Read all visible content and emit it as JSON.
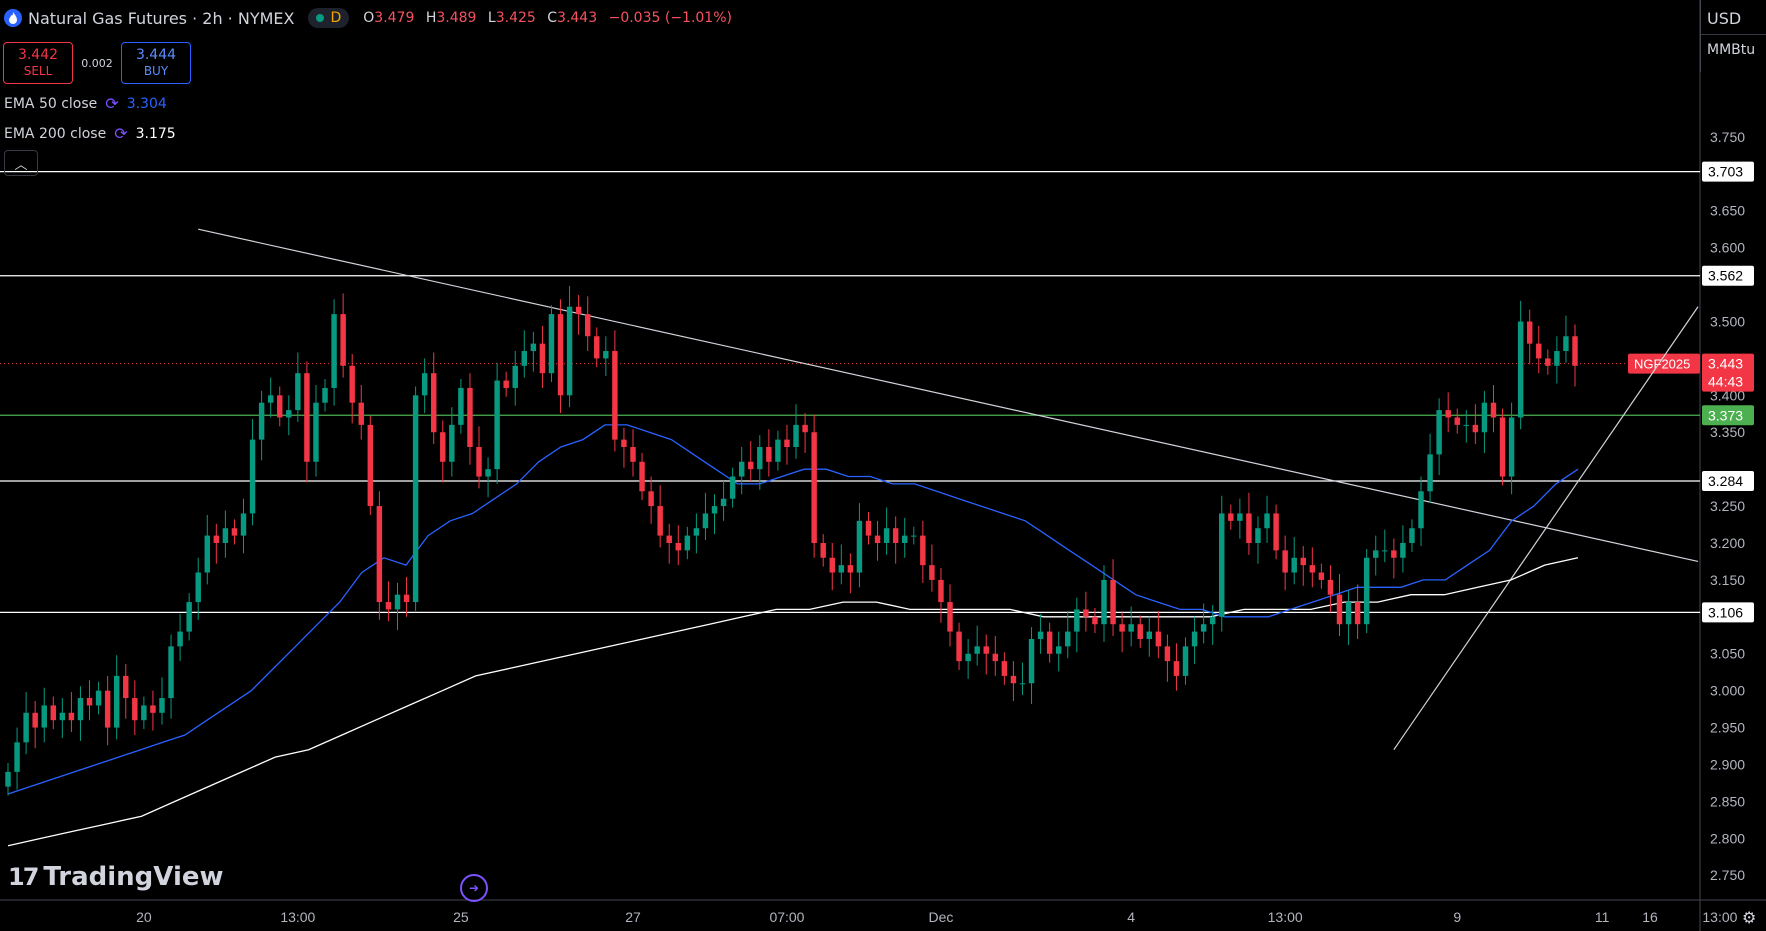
{
  "header": {
    "title": "Natural Gas Futures · 2h · NYMEX",
    "interval_badge": "D",
    "ohlc": [
      {
        "k": "O",
        "v": "3.479"
      },
      {
        "k": "H",
        "v": "3.489"
      },
      {
        "k": "L",
        "v": "3.425"
      },
      {
        "k": "C",
        "v": "3.443"
      }
    ],
    "change": "−0.035 (−1.01%)"
  },
  "trade": {
    "sell_price": "3.442",
    "sell_label": "SELL",
    "spread": "0.002",
    "buy_price": "3.444",
    "buy_label": "BUY"
  },
  "indicators": [
    {
      "name": "EMA 50 close",
      "value": "3.304",
      "color": "#2962ff"
    },
    {
      "name": "EMA 200 close",
      "value": "3.175",
      "color": "#ffffff"
    }
  ],
  "axis": {
    "currency": "USD",
    "unit": "MMBtu"
  },
  "chart_data": {
    "type": "candlestick",
    "ylim": [
      2.73,
      3.8
    ],
    "price_ticks": [
      "3.750",
      "3.650",
      "3.600",
      "3.500",
      "3.400",
      "3.350",
      "3.250",
      "3.200",
      "3.150",
      "3.050",
      "3.000",
      "2.950",
      "2.900",
      "2.850",
      "2.800",
      "2.750"
    ],
    "time_labels": [
      "20",
      "13:00",
      "25",
      "27",
      "07:00",
      "Dec",
      "4",
      "13:00",
      "9",
      "11",
      "13:00",
      "16"
    ],
    "horizontal_levels": [
      {
        "value": 3.703,
        "label": "3.703",
        "color": "#ffffff"
      },
      {
        "value": 3.562,
        "label": "3.562",
        "color": "#ffffff"
      },
      {
        "value": 3.373,
        "label": "3.373",
        "color": "#4caf50"
      },
      {
        "value": 3.284,
        "label": "3.284",
        "color": "#ffffff"
      },
      {
        "value": 3.106,
        "label": "3.106",
        "color": "#ffffff"
      }
    ],
    "last_price": {
      "symbol": "NGF2025",
      "value": 3.443,
      "label": "3.443",
      "countdown": "44:43"
    },
    "up_color": "#089981",
    "down_color": "#f23645",
    "closes": [
      2.89,
      2.93,
      2.97,
      2.95,
      2.98,
      2.96,
      2.97,
      2.96,
      2.99,
      2.98,
      3.0,
      2.95,
      3.02,
      2.99,
      2.96,
      2.98,
      2.97,
      2.99,
      3.06,
      3.08,
      3.12,
      3.16,
      3.21,
      3.2,
      3.22,
      3.21,
      3.24,
      3.34,
      3.39,
      3.4,
      3.37,
      3.38,
      3.43,
      3.31,
      3.39,
      3.41,
      3.51,
      3.44,
      3.39,
      3.36,
      3.25,
      3.12,
      3.11,
      3.13,
      3.12,
      3.4,
      3.43,
      3.35,
      3.31,
      3.36,
      3.41,
      3.33,
      3.29,
      3.3,
      3.42,
      3.41,
      3.44,
      3.46,
      3.47,
      3.43,
      3.51,
      3.4,
      3.52,
      3.51,
      3.48,
      3.45,
      3.46,
      3.34,
      3.33,
      3.31,
      3.27,
      3.25,
      3.21,
      3.2,
      3.19,
      3.21,
      3.22,
      3.24,
      3.25,
      3.26,
      3.29,
      3.31,
      3.3,
      3.33,
      3.31,
      3.34,
      3.33,
      3.36,
      3.35,
      3.2,
      3.18,
      3.16,
      3.17,
      3.16,
      3.23,
      3.21,
      3.2,
      3.22,
      3.2,
      3.21,
      3.21,
      3.17,
      3.15,
      3.12,
      3.08,
      3.04,
      3.05,
      3.06,
      3.05,
      3.04,
      3.02,
      3.01,
      3.01,
      3.07,
      3.08,
      3.05,
      3.06,
      3.08,
      3.11,
      3.1,
      3.09,
      3.15,
      3.09,
      3.08,
      3.09,
      3.07,
      3.08,
      3.06,
      3.04,
      3.02,
      3.06,
      3.08,
      3.09,
      3.1,
      3.24,
      3.23,
      3.24,
      3.2,
      3.22,
      3.24,
      3.19,
      3.16,
      3.18,
      3.17,
      3.16,
      3.15,
      3.13,
      3.09,
      3.12,
      3.09,
      3.18,
      3.19,
      3.19,
      3.18,
      3.2,
      3.22,
      3.27,
      3.32,
      3.38,
      3.37,
      3.36,
      3.36,
      3.35,
      3.39,
      3.37,
      3.29,
      3.37,
      3.5,
      3.47,
      3.45,
      3.44,
      3.46,
      3.48,
      3.44
    ],
    "ema50": [
      2.86,
      2.87,
      2.88,
      2.89,
      2.9,
      2.91,
      2.92,
      2.93,
      2.94,
      2.96,
      2.98,
      3.0,
      3.03,
      3.06,
      3.09,
      3.12,
      3.16,
      3.18,
      3.17,
      3.21,
      3.23,
      3.24,
      3.26,
      3.28,
      3.31,
      3.33,
      3.34,
      3.36,
      3.36,
      3.35,
      3.34,
      3.32,
      3.3,
      3.28,
      3.28,
      3.29,
      3.3,
      3.3,
      3.29,
      3.29,
      3.28,
      3.28,
      3.27,
      3.26,
      3.25,
      3.24,
      3.23,
      3.21,
      3.19,
      3.17,
      3.15,
      3.13,
      3.12,
      3.11,
      3.11,
      3.1,
      3.1,
      3.1,
      3.11,
      3.12,
      3.13,
      3.14,
      3.14,
      3.14,
      3.15,
      3.15,
      3.17,
      3.19,
      3.23,
      3.25,
      3.28,
      3.3
    ],
    "ema200": [
      2.79,
      2.8,
      2.81,
      2.82,
      2.83,
      2.85,
      2.87,
      2.89,
      2.91,
      2.92,
      2.94,
      2.96,
      2.98,
      3.0,
      3.02,
      3.03,
      3.04,
      3.05,
      3.06,
      3.07,
      3.08,
      3.09,
      3.1,
      3.11,
      3.11,
      3.12,
      3.12,
      3.11,
      3.11,
      3.11,
      3.11,
      3.1,
      3.1,
      3.1,
      3.1,
      3.1,
      3.1,
      3.11,
      3.11,
      3.11,
      3.12,
      3.12,
      3.13,
      3.13,
      3.14,
      3.15,
      3.17,
      3.18
    ]
  },
  "branding": {
    "logo_text": "TradingView"
  }
}
